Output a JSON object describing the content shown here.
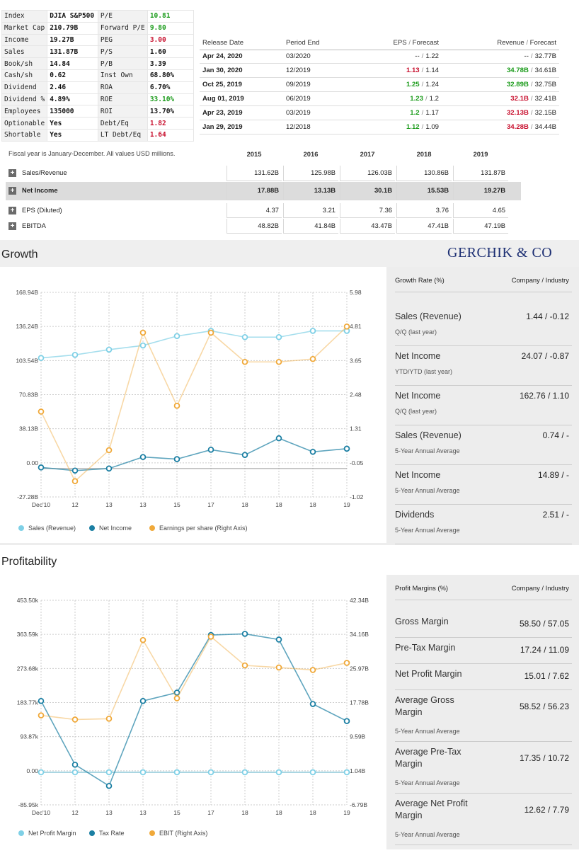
{
  "snapshot": {
    "rows": [
      [
        {
          "k": "Index"
        },
        {
          "v": "DJIA S&P500",
          "c": ""
        },
        {
          "k": "P/E"
        },
        {
          "v": "10.81",
          "c": "grn"
        }
      ],
      [
        {
          "k": "Market Cap"
        },
        {
          "v": "210.79B",
          "c": ""
        },
        {
          "k": "Forward P/E"
        },
        {
          "v": "9.80",
          "c": "grn"
        }
      ],
      [
        {
          "k": "Income"
        },
        {
          "v": "19.27B",
          "c": ""
        },
        {
          "k": "PEG"
        },
        {
          "v": "3.00",
          "c": "red"
        }
      ],
      [
        {
          "k": "Sales"
        },
        {
          "v": "131.87B",
          "c": ""
        },
        {
          "k": "P/S"
        },
        {
          "v": "1.60",
          "c": ""
        }
      ],
      [
        {
          "k": "Book/sh"
        },
        {
          "v": "14.84",
          "c": ""
        },
        {
          "k": "P/B"
        },
        {
          "v": "3.39",
          "c": ""
        }
      ],
      [
        {
          "k": "Cash/sh"
        },
        {
          "v": "0.62",
          "c": ""
        },
        {
          "k": "Inst Own"
        },
        {
          "v": "68.80%",
          "c": ""
        }
      ],
      [
        {
          "k": "Dividend"
        },
        {
          "v": "2.46",
          "c": ""
        },
        {
          "k": "ROA"
        },
        {
          "v": "6.70%",
          "c": ""
        }
      ],
      [
        {
          "k": "Dividend %"
        },
        {
          "v": "4.89%",
          "c": ""
        },
        {
          "k": "ROE"
        },
        {
          "v": "33.10%",
          "c": "grn"
        }
      ],
      [
        {
          "k": "Employees"
        },
        {
          "v": "135000",
          "c": ""
        },
        {
          "k": "ROI"
        },
        {
          "v": "13.70%",
          "c": ""
        }
      ],
      [
        {
          "k": "Optionable"
        },
        {
          "v": "Yes",
          "c": ""
        },
        {
          "k": "Debt/Eq"
        },
        {
          "v": "1.82",
          "c": "red"
        }
      ],
      [
        {
          "k": "Shortable"
        },
        {
          "v": "Yes",
          "c": ""
        },
        {
          "k": "LT Debt/Eq"
        },
        {
          "v": "1.64",
          "c": "red"
        }
      ]
    ]
  },
  "earnings": {
    "headers": {
      "release": "Release Date",
      "period": "Period End",
      "eps": "EPS",
      "eps_f": "Forecast",
      "rev": "Revenue",
      "rev_f": "Forecast",
      "sep": "/"
    },
    "rows": [
      {
        "date": "Apr 24, 2020",
        "period": "03/2020",
        "eps": "--",
        "eps_c": "",
        "eps_f": "1.22",
        "rev": "--",
        "rev_c": "",
        "rev_f": "32.77B"
      },
      {
        "date": "Jan 30, 2020",
        "period": "12/2019",
        "eps": "1.13",
        "eps_c": "r",
        "eps_f": "1.14",
        "rev": "34.78B",
        "rev_c": "g",
        "rev_f": "34.61B"
      },
      {
        "date": "Oct 25, 2019",
        "period": "09/2019",
        "eps": "1.25",
        "eps_c": "g",
        "eps_f": "1.24",
        "rev": "32.89B",
        "rev_c": "g",
        "rev_f": "32.75B"
      },
      {
        "date": "Aug 01, 2019",
        "period": "06/2019",
        "eps": "1.23",
        "eps_c": "g",
        "eps_f": "1.2",
        "rev": "32.1B",
        "rev_c": "r",
        "rev_f": "32.41B"
      },
      {
        "date": "Apr 23, 2019",
        "period": "03/2019",
        "eps": "1.2",
        "eps_c": "g",
        "eps_f": "1.17",
        "rev": "32.13B",
        "rev_c": "r",
        "rev_f": "32.15B"
      },
      {
        "date": "Jan 29, 2019",
        "period": "12/2018",
        "eps": "1.12",
        "eps_c": "g",
        "eps_f": "1.09",
        "rev": "34.28B",
        "rev_c": "r",
        "rev_f": "34.44B"
      }
    ]
  },
  "financials": {
    "note": "Fiscal year is January-December. All values USD millions.",
    "years": [
      "2015",
      "2016",
      "2017",
      "2018",
      "2019"
    ],
    "rows": [
      {
        "label": "Sales/Revenue",
        "values": [
          "131.62B",
          "125.98B",
          "126.03B",
          "130.86B",
          "131.87B"
        ],
        "hl": false
      },
      {
        "label": "Net Income",
        "values": [
          "17.88B",
          "13.13B",
          "30.1B",
          "15.53B",
          "19.27B"
        ],
        "hl": true
      },
      {
        "label": "EPS (Diluted)",
        "values": [
          "4.37",
          "3.21",
          "7.36",
          "3.76",
          "4.65"
        ],
        "hl": false
      },
      {
        "label": "EBITDA",
        "values": [
          "48.82B",
          "41.84B",
          "43.47B",
          "47.41B",
          "47.19B"
        ],
        "hl": false
      }
    ],
    "plus_symbol": "+"
  },
  "brand": "GERCHIK & CO",
  "growth": {
    "title": "Growth",
    "table_head": {
      "left": "Growth Rate (%)",
      "right": "Company / Industry"
    },
    "metrics": [
      {
        "name": "Sales (Revenue)",
        "sub": "Q/Q (last year)",
        "value": "1.44 / -0.12"
      },
      {
        "name": "Net Income",
        "sub": "YTD/YTD (last year)",
        "value": "24.07 / -0.87"
      },
      {
        "name": "Net Income",
        "sub": "Q/Q (last year)",
        "value": "162.76 / 1.10"
      },
      {
        "name": "Sales (Revenue)",
        "sub": "5-Year Annual Average",
        "value": "0.74 / -"
      },
      {
        "name": "Net Income",
        "sub": "5-Year Annual Average",
        "value": "14.89 / -"
      },
      {
        "name": "Dividends",
        "sub": "5-Year Annual Average",
        "value": "2.51 / -"
      }
    ]
  },
  "profitability": {
    "title": "Profitability",
    "table_head": {
      "left": "Profit Margins (%)",
      "right": "Company / Industry"
    },
    "metrics": [
      {
        "name": "Gross Margin",
        "sub": "",
        "value": "58.50 / 57.05"
      },
      {
        "name": "Pre-Tax Margin",
        "sub": "",
        "value": "17.24 / 11.09"
      },
      {
        "name": "Net Profit Margin",
        "sub": "",
        "value": "15.01 / 7.62"
      },
      {
        "name": "Average Gross Margin",
        "sub": "5-Year Annual Average",
        "value": "58.52 / 56.23"
      },
      {
        "name": "Average Pre-Tax Margin",
        "sub": "5-Year Annual Average",
        "value": "17.35 / 10.72"
      },
      {
        "name": "Average Net Profit Margin",
        "sub": "5-Year Annual Average",
        "value": "12.62 / 7.79"
      }
    ]
  },
  "colors": {
    "light": "#7fd0e6",
    "dark": "#1b7fa3",
    "orange": "#f0a93a",
    "green": "#1a9b1a",
    "red": "#c8102e",
    "brand": "#1d2f73"
  },
  "chart_data": [
    {
      "type": "line",
      "title": "Growth",
      "categories": [
        "Dec'10",
        "12",
        "13",
        "13",
        "15",
        "17",
        "18",
        "18",
        "18",
        "19"
      ],
      "left_ticks": [
        "168.94B",
        "136.24B",
        "103.54B",
        "70.83B",
        "38.13B",
        "0.00",
        "-27.28B"
      ],
      "right_ticks": [
        "5.98",
        "4.81",
        "3.65",
        "2.48",
        "1.31",
        "-0.05",
        "-1.02"
      ],
      "left_range": [
        -27.28,
        168.94
      ],
      "right_range": [
        -1.02,
        5.98
      ],
      "series": [
        {
          "name": "Sales (Revenue)",
          "axis": "left",
          "color": "#7fd0e6",
          "values": [
            106,
            109,
            114,
            118,
            127,
            132,
            126,
            126,
            132,
            132
          ]
        },
        {
          "name": "Net Income",
          "axis": "left",
          "color": "#1b7fa3",
          "values": [
            1,
            -2,
            0,
            11,
            9,
            18,
            13,
            29,
            16,
            19
          ]
        },
        {
          "name": "Earnings per share (Right Axis)",
          "axis": "right",
          "color": "#f0a93a",
          "values": [
            1.9,
            -0.48,
            0.58,
            4.6,
            2.1,
            4.6,
            3.6,
            3.6,
            3.7,
            4.81
          ]
        }
      ]
    },
    {
      "type": "line",
      "title": "Profitability",
      "categories": [
        "Dec'10",
        "12",
        "13",
        "13",
        "15",
        "17",
        "18",
        "18",
        "18",
        "19"
      ],
      "left_ticks": [
        "453.50k",
        "363.59k",
        "273.68k",
        "183.77k",
        "93.87k",
        "0.00",
        "-85.95k"
      ],
      "right_ticks": [
        "42.34B",
        "34.16B",
        "25.97B",
        "17.78B",
        "9.59B",
        "1.04B",
        "-6.79B"
      ],
      "left_range": [
        -85.95,
        453.5
      ],
      "right_range": [
        -6.79,
        42.34
      ],
      "series": [
        {
          "name": "Net Profit Margin",
          "axis": "left",
          "color": "#7fd0e6",
          "values": [
            0,
            0,
            0,
            0,
            0,
            0,
            0,
            0,
            0,
            0
          ]
        },
        {
          "name": "Tax Rate",
          "axis": "left",
          "color": "#1b7fa3",
          "values": [
            188,
            20,
            -36,
            188,
            210,
            362,
            365,
            350,
            180,
            135
          ]
        },
        {
          "name": "EBIT (Right Axis)",
          "axis": "right",
          "color": "#f0a93a",
          "values": [
            14.7,
            13.7,
            13.9,
            32.8,
            18.8,
            33.6,
            26.7,
            26.2,
            25.6,
            27.3
          ]
        }
      ]
    }
  ]
}
